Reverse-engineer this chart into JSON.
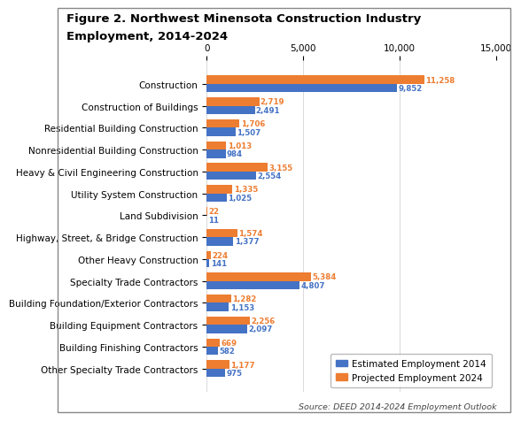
{
  "title_line1": "Figure 2. Northwest Minensota Construction Industry",
  "title_line2": "Employment, 2014-2024",
  "categories": [
    "Construction",
    "Construction of Buildings",
    "Residential Building Construction",
    "Nonresidential Building Construction",
    "Heavy & Civil Engineering Construction",
    "Utility System Construction",
    "Land Subdivision",
    "Highway, Street, & Bridge Construction",
    "Other Heavy Construction",
    "Specialty Trade Contractors",
    "Building Foundation/Exterior Contractors",
    "Building Equipment Contractors",
    "Building Finishing Contractors",
    "Other Specialty Trade Contractors"
  ],
  "estimated_2014": [
    9852,
    2491,
    1507,
    984,
    2554,
    1025,
    11,
    1377,
    141,
    4807,
    1153,
    2097,
    582,
    975
  ],
  "projected_2024": [
    11258,
    2719,
    1706,
    1013,
    3155,
    1335,
    22,
    1574,
    224,
    5384,
    1282,
    2256,
    669,
    1177
  ],
  "color_2014": "#4472C4",
  "color_2024": "#ED7D31",
  "label_2014": "Estimated Employment 2014",
  "label_2024": "Projected Employment 2024",
  "xlim": [
    0,
    15000
  ],
  "xticks": [
    0,
    5000,
    10000,
    15000
  ],
  "xtick_labels": [
    "0",
    "5,000",
    "10,000",
    "15,000"
  ],
  "source": "Source: DEED 2014-2024 Employment Outlook",
  "bar_height": 0.38,
  "title_fontsize": 9.5,
  "tick_fontsize": 7.5,
  "label_fontsize": 7.5,
  "value_fontsize": 6.2,
  "background_color": "#FFFFFF",
  "border_color": "#AAAAAA"
}
